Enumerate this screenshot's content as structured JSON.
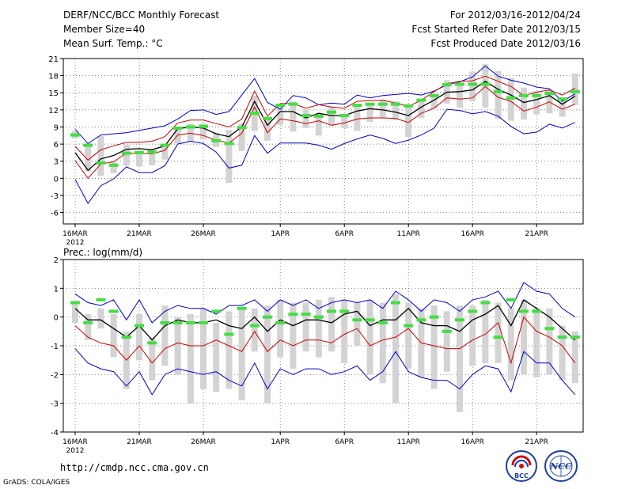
{
  "header": {
    "title": "DERF/NCC/BCC Monthly Forecast",
    "member_size": "Member Size=40",
    "variable": "Mean Surf. Temp.: °C",
    "period": "For 2012/03/16-2012/04/24",
    "started": "Fcst Started Refer Date 2012/03/15",
    "produced": "Fcst Produced Date 2012/03/16"
  },
  "footer": {
    "url": "http://cmdp.ncc.cma.gov.cn",
    "grads": "GrADS: COLA/IGES",
    "logo_left_text": "BCC",
    "logo_right_text": "NCC"
  },
  "colors": {
    "bar": "#d3d3d3",
    "green": "#44dd44",
    "red": "#cc0000",
    "blue": "#0000cc",
    "mean": "#000000",
    "grid": "#555555"
  },
  "chart_data": [
    {
      "type": "bar",
      "title": "Mean Surf. Temp.: °C",
      "xlabel": "",
      "ylabel": "",
      "x_tick_labels": [
        "16MAR",
        "21MAR",
        "26MAR",
        "1APR",
        "6APR",
        "11APR",
        "16APR",
        "21APR"
      ],
      "x_tick_index": [
        0,
        5,
        10,
        16,
        21,
        26,
        31,
        36
      ],
      "year_label": "2012",
      "ylim": [
        -8,
        21
      ],
      "yticks": [
        -6,
        -3,
        0,
        3,
        6,
        9,
        12,
        15,
        18,
        21
      ],
      "n_days": 40,
      "series": [
        {
          "name": "box_max",
          "values": [
            8.3,
            6.1,
            7.4,
            2.8,
            5.9,
            4.6,
            4.9,
            6.0,
            8.7,
            9.6,
            9.6,
            8.0,
            8.5,
            9.6,
            14.5,
            10.6,
            12.6,
            13.5,
            12.1,
            11.4,
            12.6,
            11.3,
            12.8,
            13.0,
            13.8,
            13.5,
            12.8,
            13.6,
            14.4,
            17.2,
            16.6,
            18.7,
            20.0,
            18.8,
            17.6,
            15.9,
            15.3,
            15.5,
            14.1,
            18.4
          ]
        },
        {
          "name": "box_min",
          "values": [
            7.0,
            1.2,
            0.4,
            0.9,
            2.2,
            2.1,
            2.3,
            3.3,
            6.1,
            6.4,
            6.8,
            5.5,
            -0.8,
            4.8,
            8.3,
            6.6,
            9.4,
            8.2,
            8.8,
            7.5,
            9.4,
            8.8,
            8.3,
            9.9,
            10.6,
            10.2,
            7.2,
            10.6,
            12.2,
            13.1,
            12.4,
            13.5,
            12.4,
            10.4,
            10.1,
            10.3,
            11.2,
            11.4,
            10.8,
            12.9
          ]
        },
        {
          "name": "green_marker",
          "values": [
            7.6,
            5.8,
            2.7,
            2.3,
            4.4,
            4.5,
            4.6,
            5.8,
            8.8,
            9.0,
            9.1,
            6.6,
            6.1,
            8.9,
            11.4,
            10.5,
            12.8,
            13.0,
            11.0,
            10.9,
            11.6,
            11.0,
            12.8,
            13.0,
            13.0,
            13.0,
            12.7,
            13.7,
            14.5,
            16.4,
            16.5,
            16.5,
            16.5,
            15.2,
            14.1,
            14.5,
            14.5,
            14.9,
            13.9,
            15.2
          ]
        },
        {
          "name": "ensemble_mean",
          "values": [
            4.5,
            1.4,
            3.4,
            4.0,
            5.1,
            5.2,
            5.0,
            5.7,
            8.7,
            9.0,
            8.8,
            7.8,
            7.3,
            9.0,
            13.5,
            9.3,
            11.7,
            11.7,
            10.6,
            11.4,
            11.0,
            11.0,
            11.8,
            12.2,
            12.0,
            11.6,
            11.0,
            12.5,
            13.7,
            15.1,
            15.2,
            15.5,
            17.0,
            15.6,
            14.6,
            13.3,
            13.8,
            14.5,
            13.0,
            14.4
          ]
        },
        {
          "name": "red_upper",
          "values": [
            5.6,
            3.2,
            5.0,
            5.7,
            6.3,
            6.3,
            6.5,
            7.3,
            9.7,
            10.2,
            10.2,
            9.6,
            9.0,
            10.4,
            15.3,
            10.9,
            13.1,
            13.1,
            12.3,
            12.9,
            12.5,
            12.3,
            13.5,
            13.6,
            13.7,
            13.2,
            12.6,
            13.7,
            15.2,
            16.6,
            17.0,
            17.1,
            17.9,
            17.0,
            16.1,
            14.5,
            15.1,
            15.5,
            14.6,
            15.8
          ]
        },
        {
          "name": "red_lower",
          "values": [
            3.1,
            0.0,
            2.5,
            2.9,
            4.4,
            4.4,
            4.3,
            4.9,
            7.6,
            7.9,
            7.5,
            6.7,
            6.2,
            7.9,
            12.5,
            8.0,
            10.4,
            10.1,
            9.6,
            10.1,
            9.3,
            9.7,
            10.4,
            10.6,
            10.6,
            10.5,
            9.8,
            11.4,
            12.3,
            14.1,
            13.9,
            14.1,
            16.1,
            14.2,
            13.5,
            11.8,
            12.5,
            13.4,
            12.1,
            13.0
          ]
        },
        {
          "name": "blue_upper",
          "values": [
            8.6,
            6.1,
            7.6,
            7.8,
            8.0,
            8.4,
            8.8,
            9.2,
            10.4,
            11.9,
            12.0,
            11.2,
            11.7,
            14.6,
            17.5,
            13.3,
            12.1,
            14.5,
            14.1,
            12.9,
            13.2,
            13.0,
            14.6,
            14.1,
            14.5,
            14.7,
            14.9,
            14.6,
            15.3,
            16.4,
            16.9,
            17.8,
            19.7,
            17.9,
            17.2,
            16.7,
            16.0,
            15.7,
            13.5,
            14.8
          ]
        },
        {
          "name": "blue_lower",
          "values": [
            -0.2,
            -4.4,
            -1.3,
            -0.1,
            2.0,
            1.0,
            1.0,
            2.2,
            6.0,
            6.5,
            6.1,
            4.6,
            1.8,
            2.3,
            7.5,
            4.4,
            6.2,
            6.2,
            6.2,
            5.8,
            5.1,
            6.1,
            6.9,
            7.6,
            7.0,
            6.1,
            6.7,
            7.6,
            8.8,
            12.1,
            11.9,
            11.3,
            11.7,
            10.9,
            9.1,
            7.8,
            8.1,
            9.5,
            8.8,
            9.8
          ]
        }
      ]
    },
    {
      "type": "bar",
      "title": "Prec.: log(mm/d)",
      "xlabel": "",
      "ylabel": "",
      "x_tick_labels": [
        "16MAR",
        "21MAR",
        "26MAR",
        "1APR",
        "6APR",
        "11APR",
        "16APR",
        "21APR"
      ],
      "x_tick_index": [
        0,
        5,
        10,
        16,
        21,
        26,
        31,
        36
      ],
      "year_label": "2012",
      "ylim": [
        -4,
        2
      ],
      "yticks": [
        -4,
        -3,
        -2,
        -1,
        0,
        1,
        2
      ],
      "n_days": 40,
      "series": [
        {
          "name": "box_max",
          "values": [
            0.5,
            0.1,
            0.3,
            0.1,
            -0.5,
            0.1,
            -0.7,
            0.4,
            0.0,
            0.1,
            0.3,
            -0.2,
            0.2,
            0.3,
            0.3,
            0.4,
            0.6,
            0.5,
            0.5,
            0.6,
            0.7,
            0.6,
            0.5,
            0.6,
            0.5,
            0.8,
            0.5,
            0.3,
            0.4,
            0.2,
            0.4,
            0.4,
            0.6,
            0.5,
            0.3,
            0.6,
            0.3,
            0.3,
            -0.3,
            -0.5
          ]
        },
        {
          "name": "box_min",
          "values": [
            -0.2,
            -0.8,
            -0.4,
            -1.4,
            -2.5,
            -1.5,
            -2.2,
            -1.7,
            -2.0,
            -3.0,
            -2.5,
            -2.6,
            -2.5,
            -2.9,
            -1.2,
            -3.0,
            -1.4,
            -1.8,
            -1.2,
            -1.4,
            -1.2,
            -1.6,
            -1.0,
            -2.0,
            -2.3,
            -3.0,
            -1.8,
            -2.1,
            -2.5,
            -1.9,
            -3.3,
            -1.7,
            -1.6,
            -1.6,
            -2.2,
            -2.0,
            -2.1,
            -2.0,
            -2.2,
            -2.3
          ]
        },
        {
          "name": "green_marker",
          "values": [
            0.5,
            -0.2,
            0.6,
            0.2,
            -0.7,
            -0.3,
            -0.9,
            -0.2,
            -0.2,
            -0.2,
            -0.2,
            0.2,
            -0.6,
            0.3,
            -0.3,
            0.0,
            -0.2,
            0.1,
            0.1,
            0.0,
            0.2,
            0.2,
            -0.1,
            -0.1,
            -0.2,
            0.5,
            -0.3,
            -0.1,
            0.0,
            -0.5,
            -0.1,
            0.2,
            0.5,
            -0.7,
            0.6,
            0.2,
            0.2,
            -0.4,
            -0.7,
            -0.7
          ]
        },
        {
          "name": "ensemble_mean",
          "values": [
            0.3,
            -0.1,
            -0.1,
            -0.4,
            -0.7,
            -0.3,
            -0.8,
            -0.3,
            -0.1,
            -0.2,
            -0.2,
            -0.1,
            -0.3,
            -0.4,
            0.0,
            -0.5,
            -0.1,
            -0.3,
            -0.1,
            -0.1,
            -0.2,
            0.1,
            0.2,
            -0.3,
            -0.1,
            -0.1,
            0.3,
            -0.2,
            -0.3,
            -0.3,
            -0.5,
            -0.1,
            0.1,
            0.4,
            -0.3,
            0.6,
            0.3,
            0.0,
            -0.4,
            -0.8
          ]
        },
        {
          "name": "red_lower",
          "values": [
            -0.3,
            -0.7,
            -0.9,
            -1.0,
            -1.5,
            -1.0,
            -1.6,
            -1.1,
            -0.9,
            -1.0,
            -1.0,
            -0.8,
            -1.0,
            -1.2,
            -0.5,
            -1.2,
            -0.8,
            -1.0,
            -0.8,
            -0.8,
            -0.9,
            -0.6,
            -0.4,
            -1.0,
            -0.8,
            -0.7,
            -0.4,
            -0.9,
            -1.0,
            -1.1,
            -1.1,
            -0.8,
            -0.6,
            -0.2,
            -1.6,
            0.0,
            -0.5,
            -0.7,
            -1.0,
            -1.6
          ]
        },
        {
          "name": "blue_upper",
          "values": [
            0.8,
            0.5,
            0.4,
            0.6,
            -0.1,
            0.6,
            -0.2,
            0.2,
            0.4,
            0.3,
            0.3,
            0.1,
            0.4,
            0.4,
            0.6,
            0.2,
            0.6,
            0.4,
            0.6,
            0.3,
            0.5,
            0.6,
            0.5,
            0.6,
            0.3,
            0.9,
            0.6,
            0.2,
            0.6,
            0.5,
            0.2,
            0.6,
            0.7,
            0.9,
            0.3,
            1.2,
            0.9,
            0.8,
            0.3,
            0.0
          ]
        },
        {
          "name": "blue_lower",
          "values": [
            -1.1,
            -1.6,
            -1.8,
            -1.9,
            -2.4,
            -1.9,
            -2.7,
            -2.0,
            -1.8,
            -1.9,
            -2.0,
            -1.9,
            -2.2,
            -2.4,
            -1.6,
            -2.5,
            -1.8,
            -2.0,
            -1.8,
            -1.8,
            -2.0,
            -1.9,
            -1.7,
            -2.2,
            -1.9,
            -1.2,
            -1.9,
            -2.1,
            -2.2,
            -2.2,
            -2.5,
            -2.0,
            -1.7,
            -1.8,
            -2.6,
            -1.2,
            -1.6,
            -1.6,
            -2.2,
            -2.7
          ]
        }
      ]
    }
  ]
}
